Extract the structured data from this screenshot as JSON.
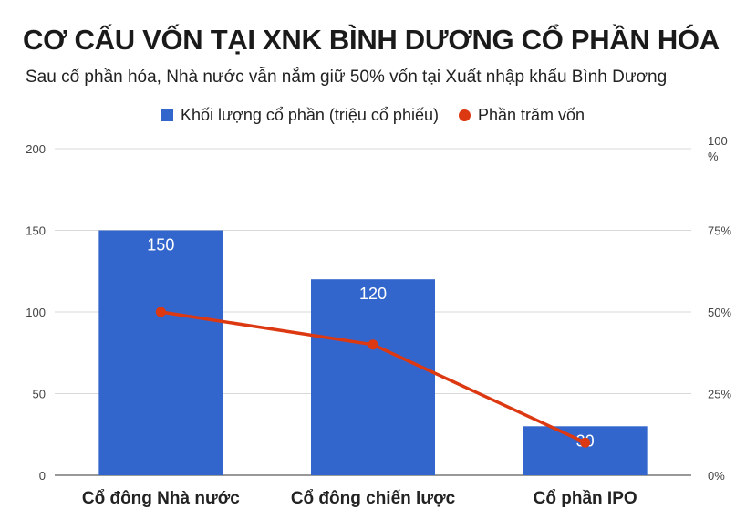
{
  "chart_data": {
    "type": "bar",
    "title": "CƠ CẤU VỐN TẠI XNK BÌNH DƯƠNG CỔ PHẦN HÓA",
    "subtitle": "Sau cổ phần hóa, Nhà nước vẫn nắm giữ 50% vốn tại Xuất nhập khẩu Bình Dương",
    "categories": [
      "Cổ đông Nhà nước",
      "Cổ đông chiến lược",
      "Cổ phần IPO"
    ],
    "series": [
      {
        "name": "Khối lượng cổ phần (triệu cổ phiếu)",
        "type": "bar",
        "axis": "left",
        "color": "#3366cc",
        "values": [
          150,
          120,
          30
        ],
        "labels": [
          "150",
          "120",
          "30"
        ]
      },
      {
        "name": "Phần trăm vốn",
        "type": "line",
        "axis": "right",
        "color": "#dc3912",
        "values": [
          50,
          40,
          10
        ]
      }
    ],
    "y_left": {
      "ylim": [
        0,
        200
      ],
      "ticks": [
        0,
        50,
        100,
        150,
        200
      ],
      "tick_labels": [
        "0",
        "50",
        "100",
        "150",
        "200"
      ]
    },
    "y_right": {
      "ylim": [
        0,
        100
      ],
      "ticks": [
        0,
        25,
        50,
        75,
        100
      ],
      "tick_labels": [
        "0%",
        "25%",
        "50%",
        "75%",
        "100\n%"
      ]
    },
    "grid": true,
    "legend_position": "top-center"
  }
}
